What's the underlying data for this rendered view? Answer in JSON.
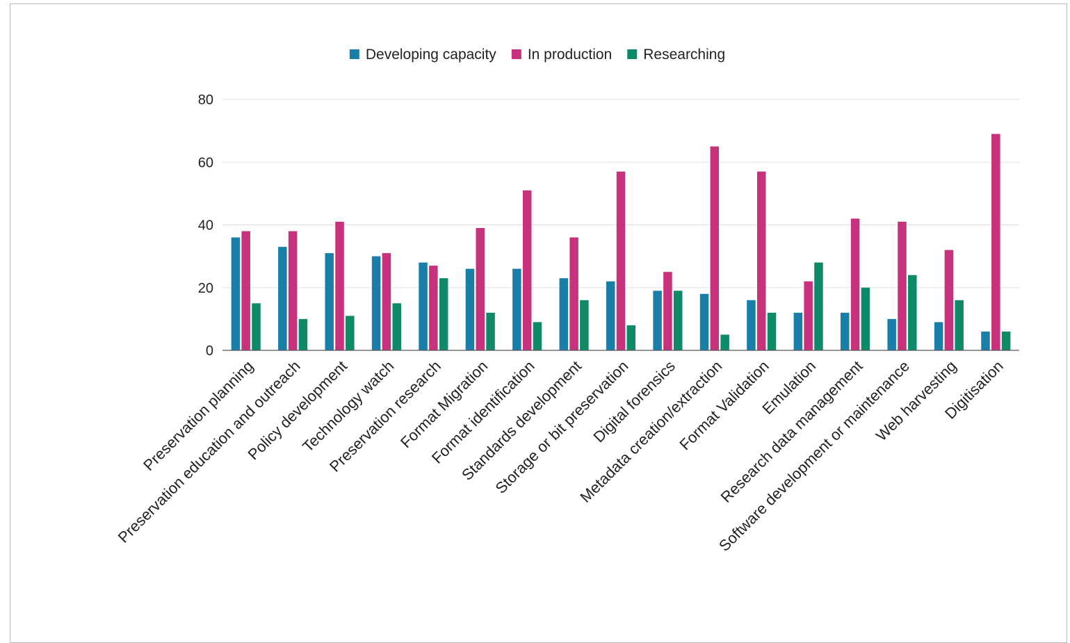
{
  "chart_data": {
    "type": "bar",
    "categories": [
      "Preservation planning",
      "Preservation education and outreach",
      "Policy development",
      "Technology watch",
      "Preservation research",
      "Format Migration",
      "Format identification",
      "Standards development",
      "Storage or bit preservation",
      "Digital forensics",
      "Metadata creation/extraction",
      "Format Validation",
      "Emulation",
      "Research data management",
      "Software development or maintenance",
      "Web harvesting",
      "Digitisation"
    ],
    "series": [
      {
        "name": "Developing capacity",
        "color": "#1a7fa8",
        "values": [
          36,
          33,
          31,
          30,
          28,
          26,
          26,
          23,
          22,
          19,
          18,
          16,
          12,
          12,
          10,
          9,
          6
        ]
      },
      {
        "name": "In production",
        "color": "#c8317b",
        "values": [
          38,
          38,
          41,
          31,
          27,
          39,
          51,
          36,
          57,
          25,
          65,
          57,
          22,
          42,
          41,
          32,
          69
        ]
      },
      {
        "name": "Researching",
        "color": "#0f8a68",
        "values": [
          15,
          10,
          11,
          15,
          23,
          12,
          9,
          16,
          8,
          19,
          5,
          12,
          28,
          20,
          24,
          16,
          6
        ]
      }
    ],
    "yticks": [
      "0",
      "20",
      "40",
      "60",
      "80"
    ],
    "ylim": [
      0,
      80
    ],
    "grid": true,
    "legend_position": "top-center",
    "title": "",
    "xlabel": "",
    "ylabel": ""
  }
}
